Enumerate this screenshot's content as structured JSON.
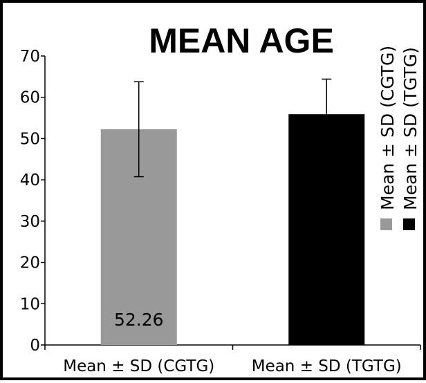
{
  "chart_data": {
    "type": "bar",
    "title": "MEAN AGE",
    "xlabel": "",
    "ylabel": "",
    "categories": [
      "Mean ± SD  (CGTG)",
      "Mean ± SD (TGTG)"
    ],
    "values": [
      52.26,
      55.9
    ],
    "errors": [
      11.5,
      8.5
    ],
    "colors": [
      "#999999",
      "#000000"
    ],
    "data_labels": [
      "52.26",
      ""
    ],
    "ylim": [
      0,
      70
    ],
    "yticks": [
      0,
      10,
      20,
      30,
      40,
      50,
      60,
      70
    ],
    "grid": false,
    "legend": {
      "placement": "right",
      "orientation": "vertical",
      "entries": [
        {
          "label": "Mean ± SD  (CGTG)",
          "color": "#999999"
        },
        {
          "label": "Mean ± SD (TGTG)",
          "color": "#000000"
        }
      ]
    }
  }
}
